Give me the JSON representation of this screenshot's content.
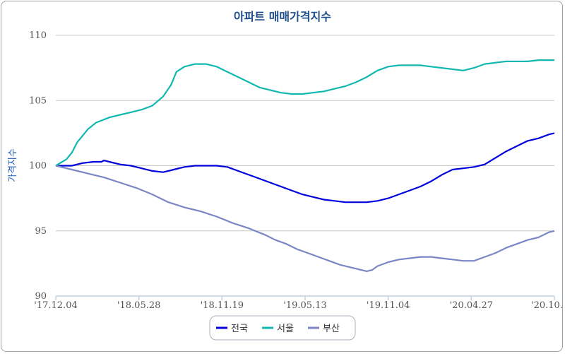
{
  "chart_data": {
    "type": "line",
    "title": "아파트 매매가격지수",
    "xlabel": "",
    "ylabel": "가격지수",
    "ylim": [
      90,
      110
    ],
    "yticks": [
      "90",
      "95",
      "100",
      "105",
      "110"
    ],
    "xticks": [
      "'17.12.04",
      "'18.05.28",
      "'18.11.19",
      "'19.05.13",
      "'19.11.04",
      "'20.04.27",
      "'20.10."
    ],
    "grid": "horizontal",
    "legend_position": "bottom-center",
    "series": [
      {
        "name": "전국",
        "color": "#0000dd",
        "points": [
          [
            0,
            100
          ],
          [
            6,
            100
          ],
          [
            10,
            100.2
          ],
          [
            14,
            100.3
          ],
          [
            17,
            100.3
          ],
          [
            18,
            100.4
          ],
          [
            20,
            100.3
          ],
          [
            24,
            100.1
          ],
          [
            28,
            100
          ],
          [
            32,
            99.8
          ],
          [
            36,
            99.6
          ],
          [
            40,
            99.5
          ],
          [
            42,
            99.6
          ],
          [
            44,
            99.7
          ],
          [
            48,
            99.9
          ],
          [
            52,
            100
          ],
          [
            56,
            100
          ],
          [
            60,
            100
          ],
          [
            64,
            99.9
          ],
          [
            68,
            99.6
          ],
          [
            72,
            99.3
          ],
          [
            76,
            99
          ],
          [
            80,
            98.7
          ],
          [
            84,
            98.4
          ],
          [
            88,
            98.1
          ],
          [
            92,
            97.8
          ],
          [
            96,
            97.6
          ],
          [
            100,
            97.4
          ],
          [
            104,
            97.3
          ],
          [
            108,
            97.2
          ],
          [
            112,
            97.2
          ],
          [
            116,
            97.2
          ],
          [
            120,
            97.3
          ],
          [
            124,
            97.5
          ],
          [
            128,
            97.8
          ],
          [
            132,
            98.1
          ],
          [
            136,
            98.4
          ],
          [
            140,
            98.8
          ],
          [
            144,
            99.3
          ],
          [
            148,
            99.7
          ],
          [
            152,
            99.8
          ],
          [
            156,
            99.9
          ],
          [
            160,
            100.1
          ],
          [
            164,
            100.6
          ],
          [
            168,
            101.1
          ],
          [
            172,
            101.5
          ],
          [
            176,
            101.9
          ],
          [
            180,
            102.1
          ],
          [
            184,
            102.4
          ],
          [
            186,
            102.5
          ]
        ]
      },
      {
        "name": "서울",
        "color": "#12b8b0",
        "points": [
          [
            0,
            100
          ],
          [
            4,
            100.5
          ],
          [
            6,
            101
          ],
          [
            8,
            101.8
          ],
          [
            12,
            102.8
          ],
          [
            15,
            103.3
          ],
          [
            20,
            103.7
          ],
          [
            24,
            103.9
          ],
          [
            28,
            104.1
          ],
          [
            32,
            104.3
          ],
          [
            36,
            104.6
          ],
          [
            40,
            105.3
          ],
          [
            43,
            106.2
          ],
          [
            45,
            107.2
          ],
          [
            48,
            107.6
          ],
          [
            52,
            107.8
          ],
          [
            56,
            107.8
          ],
          [
            60,
            107.6
          ],
          [
            64,
            107.2
          ],
          [
            68,
            106.8
          ],
          [
            72,
            106.4
          ],
          [
            76,
            106
          ],
          [
            80,
            105.8
          ],
          [
            84,
            105.6
          ],
          [
            88,
            105.5
          ],
          [
            92,
            105.5
          ],
          [
            96,
            105.6
          ],
          [
            100,
            105.7
          ],
          [
            104,
            105.9
          ],
          [
            108,
            106.1
          ],
          [
            112,
            106.4
          ],
          [
            116,
            106.8
          ],
          [
            120,
            107.3
          ],
          [
            124,
            107.6
          ],
          [
            128,
            107.7
          ],
          [
            132,
            107.7
          ],
          [
            136,
            107.7
          ],
          [
            140,
            107.6
          ],
          [
            144,
            107.5
          ],
          [
            148,
            107.4
          ],
          [
            152,
            107.3
          ],
          [
            156,
            107.5
          ],
          [
            160,
            107.8
          ],
          [
            164,
            107.9
          ],
          [
            168,
            108
          ],
          [
            172,
            108
          ],
          [
            176,
            108
          ],
          [
            180,
            108.1
          ],
          [
            184,
            108.1
          ],
          [
            186,
            108.1
          ]
        ]
      },
      {
        "name": "부산",
        "color": "#7b86c4",
        "points": [
          [
            0,
            100
          ],
          [
            6,
            99.7
          ],
          [
            12,
            99.4
          ],
          [
            18,
            99.1
          ],
          [
            24,
            98.7
          ],
          [
            30,
            98.3
          ],
          [
            36,
            97.8
          ],
          [
            42,
            97.2
          ],
          [
            48,
            96.8
          ],
          [
            54,
            96.5
          ],
          [
            60,
            96.1
          ],
          [
            66,
            95.6
          ],
          [
            72,
            95.2
          ],
          [
            78,
            94.7
          ],
          [
            82,
            94.3
          ],
          [
            86,
            94
          ],
          [
            90,
            93.6
          ],
          [
            94,
            93.3
          ],
          [
            98,
            93
          ],
          [
            102,
            92.7
          ],
          [
            106,
            92.4
          ],
          [
            110,
            92.2
          ],
          [
            114,
            92
          ],
          [
            116,
            91.9
          ],
          [
            118,
            92
          ],
          [
            120,
            92.3
          ],
          [
            124,
            92.6
          ],
          [
            128,
            92.8
          ],
          [
            132,
            92.9
          ],
          [
            136,
            93
          ],
          [
            140,
            93
          ],
          [
            144,
            92.9
          ],
          [
            148,
            92.8
          ],
          [
            152,
            92.7
          ],
          [
            156,
            92.7
          ],
          [
            160,
            93
          ],
          [
            164,
            93.3
          ],
          [
            168,
            93.7
          ],
          [
            172,
            94
          ],
          [
            176,
            94.3
          ],
          [
            180,
            94.5
          ],
          [
            184,
            94.9
          ],
          [
            186,
            95
          ]
        ]
      }
    ]
  }
}
